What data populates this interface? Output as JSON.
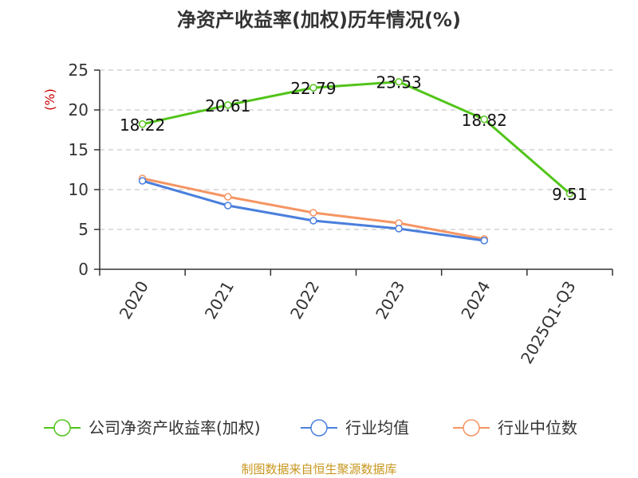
{
  "chart_data": {
    "type": "line",
    "title": "净资产收益率(加权)历年情况(%)",
    "ylabel": "(%)",
    "xlabel": "",
    "ylim": [
      0,
      25
    ],
    "yticks": [
      0,
      5,
      10,
      15,
      20,
      25
    ],
    "grid": true,
    "categories": [
      "2020",
      "2021",
      "2022",
      "2023",
      "2024",
      "2025Q1-Q3"
    ],
    "series": [
      {
        "name": "公司净资产收益率(加权)",
        "color": "#52c41a",
        "values": [
          18.22,
          20.61,
          22.79,
          23.53,
          18.82,
          9.51
        ],
        "labels": [
          "18.22",
          "20.61",
          "22.79",
          "23.53",
          "18.82",
          "9.51"
        ]
      },
      {
        "name": "行业均值",
        "color": "#4a7fdc",
        "values": [
          11.1,
          8.0,
          6.1,
          5.1,
          3.6,
          null
        ]
      },
      {
        "name": "行业中位数",
        "color": "#f59563",
        "values": [
          11.4,
          9.1,
          7.1,
          5.8,
          3.8,
          null
        ]
      }
    ],
    "legend_position": "bottom",
    "source": "制图数据来自恒生聚源数据库",
    "source_color": "#c8961e",
    "ylabel_color": "#cc0000"
  }
}
